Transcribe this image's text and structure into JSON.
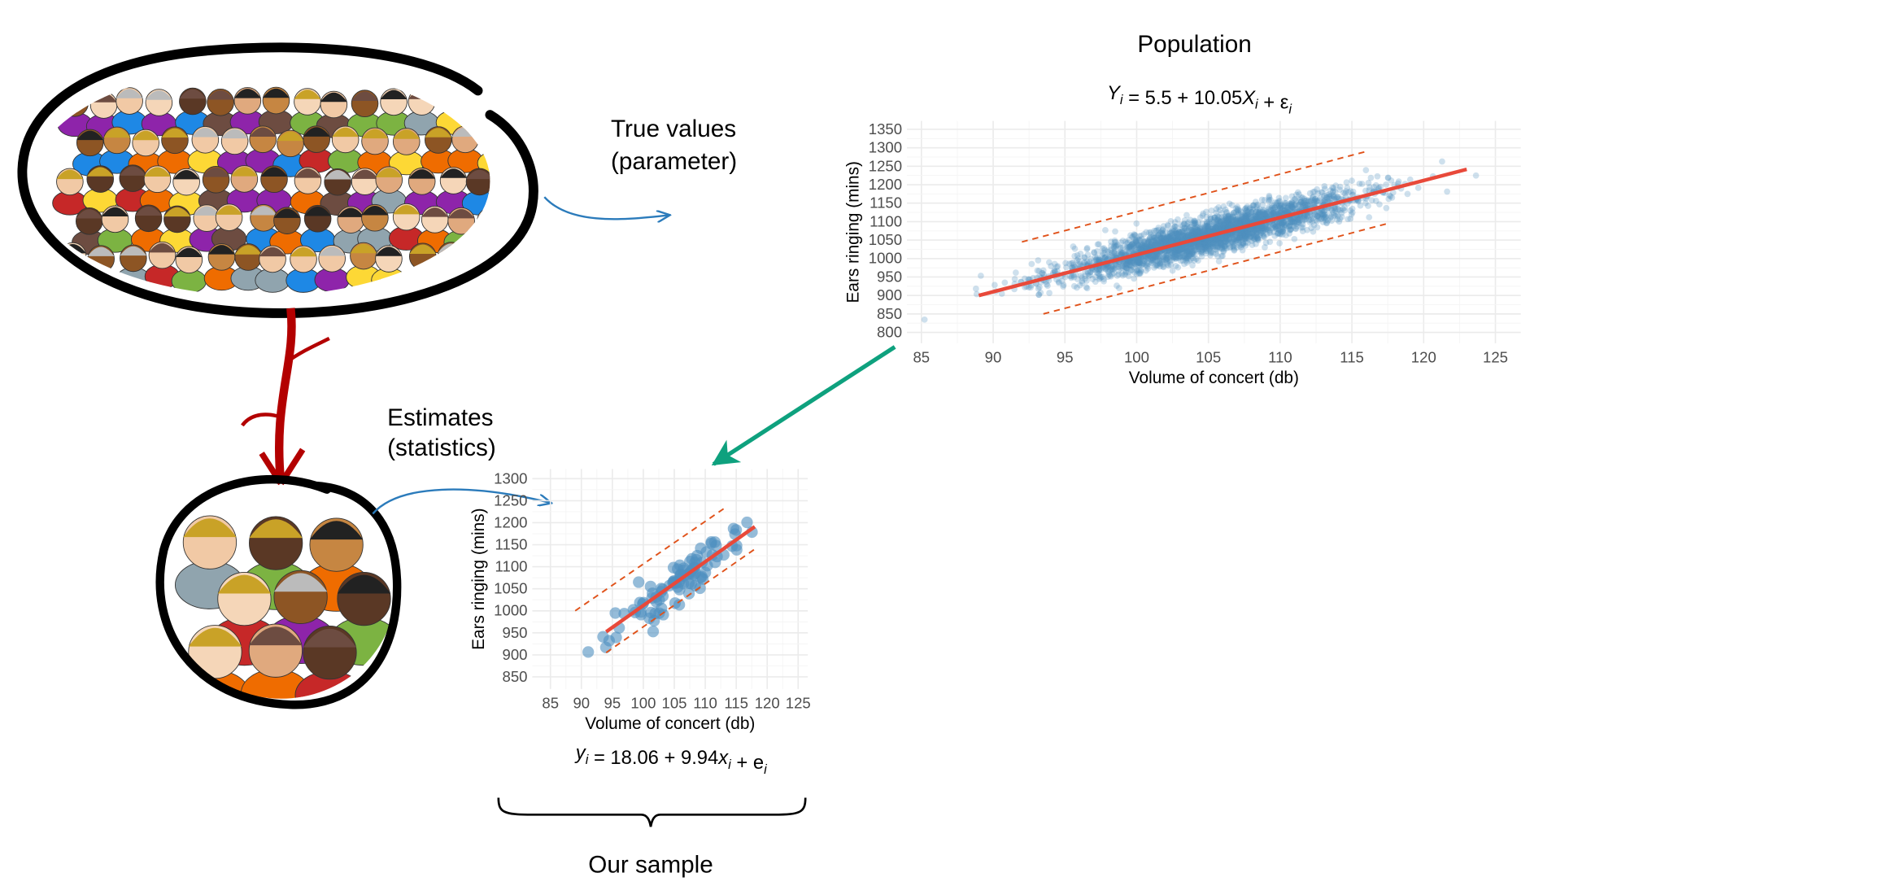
{
  "labels": {
    "true_values_line1": "True values",
    "true_values_line2": "(parameter)",
    "estimates_line1": "Estimates",
    "estimates_line2": "(statistics)",
    "population_title": "Population",
    "our_sample": "Our sample"
  },
  "colors": {
    "points": "#4f8fbf",
    "fit_line": "#e8493a",
    "band": "#e0521a",
    "population_equation": "#d9860a",
    "sample_equation": "#e8493a",
    "arrow_blue": "#2b7bbb",
    "arrow_green": "#0ea17e",
    "arrow_red": "#b30000"
  },
  "chart_data": [
    {
      "name": "population",
      "type": "scatter",
      "title": "Population",
      "equation": {
        "lhs": "Y",
        "sub": "i",
        "text": " = 5.5 + 10.05",
        "var": "X",
        "tail": " + ε"
      },
      "xlabel": "Volume of concert (db)",
      "ylabel": "Ears ringing (mins)",
      "xlim": [
        85,
        125
      ],
      "ylim": [
        800,
        1350
      ],
      "xticks": [
        "85",
        "90",
        "95",
        "100",
        "105",
        "110",
        "115",
        "120",
        "125"
      ],
      "yticks": [
        "800",
        "850",
        "900",
        "950",
        "1000",
        "1050",
        "1100",
        "1150",
        "1200",
        "1250",
        "1300",
        "1350"
      ],
      "intercept": 5.5,
      "slope": 10.05,
      "fit_x_range": [
        89,
        123
      ],
      "band_upper": [
        [
          92,
          1045
        ],
        [
          116,
          1290
        ]
      ],
      "band_lower": [
        [
          93.5,
          850
        ],
        [
          117.5,
          1095
        ]
      ],
      "points": {
        "n": 3000,
        "x_mean": 105,
        "x_sd": 5,
        "resid_sd": 25,
        "seed": 7
      },
      "grid": true
    },
    {
      "name": "sample",
      "type": "scatter",
      "equation": {
        "lhs": "y",
        "sub": "i",
        "text": " = 18.06 + 9.94",
        "var": "x",
        "tail": " + e"
      },
      "xlabel": "Volume of concert (db)",
      "ylabel": "Ears ringing (mins)",
      "xlim": [
        85,
        125
      ],
      "ylim": [
        850,
        1300
      ],
      "xticks": [
        "85",
        "90",
        "95",
        "100",
        "105",
        "110",
        "115",
        "120",
        "125"
      ],
      "yticks": [
        "850",
        "900",
        "950",
        "1000",
        "1050",
        "1100",
        "1150",
        "1200",
        "1250",
        "1300"
      ],
      "intercept": 18.06,
      "slope": 9.94,
      "fit_x_range": [
        94,
        118
      ],
      "band_upper": [
        [
          89,
          1000
        ],
        [
          113,
          1232
        ]
      ],
      "band_lower": [
        [
          94,
          905
        ],
        [
          118,
          1140
        ]
      ],
      "points": {
        "n": 100,
        "x_mean": 106,
        "x_sd": 5,
        "resid_sd": 28,
        "seed": 3
      },
      "grid": true
    }
  ]
}
